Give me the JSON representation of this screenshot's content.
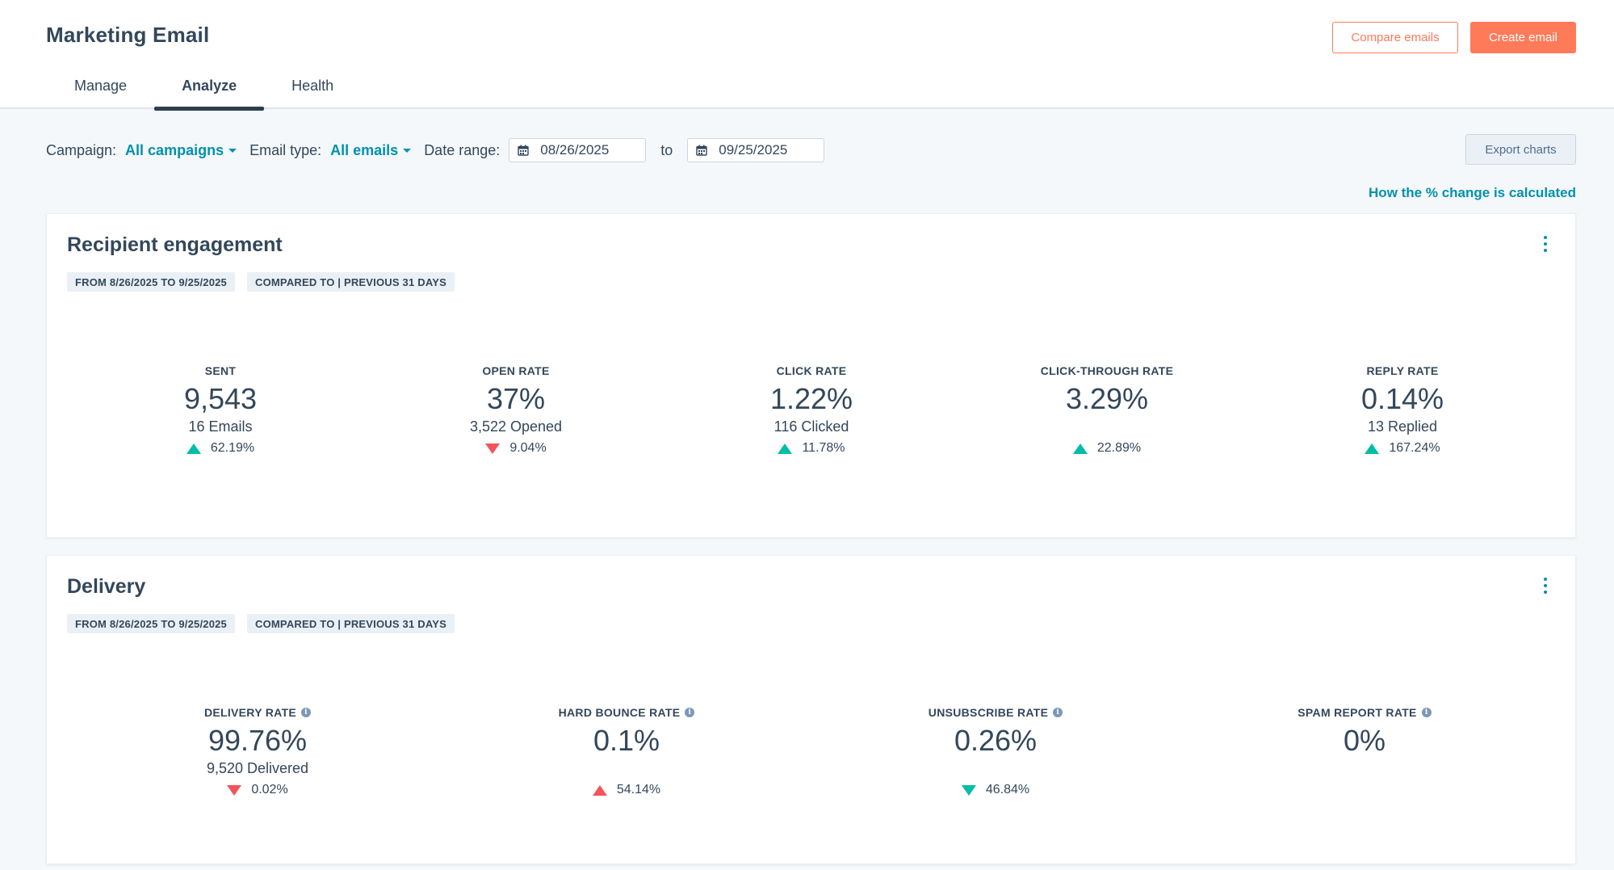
{
  "app": {
    "title": "Marketing Email"
  },
  "header": {
    "compare_label": "Compare emails",
    "create_label": "Create email",
    "tabs": [
      {
        "label": "Manage",
        "active": false
      },
      {
        "label": "Analyze",
        "active": true
      },
      {
        "label": "Health",
        "active": false
      }
    ]
  },
  "filters": {
    "campaign_label": "Campaign:",
    "campaign_value": "All campaigns",
    "email_type_label": "Email type:",
    "email_type_value": "All emails",
    "date_range_label": "Date range:",
    "start_date": "08/26/2025",
    "to_label": "to",
    "end_date": "09/25/2025",
    "export_label": "Export charts",
    "help_link": "How the % change is calculated"
  },
  "colors": {
    "accent_orange": "#ff7a59",
    "link_teal": "#0091ae",
    "positive": "#00bda5",
    "negative": "#f2545b",
    "text": "#33475b"
  },
  "engagement": {
    "title": "Recipient engagement",
    "chip_range": "FROM 8/26/2025 TO 9/25/2025",
    "chip_compare": "COMPARED TO | PREVIOUS 31 DAYS",
    "metrics": [
      {
        "label": "SENT",
        "value": "9,543",
        "sub": "16 Emails",
        "change": "62.19%",
        "direction": "up",
        "sentiment": "positive"
      },
      {
        "label": "OPEN RATE",
        "value": "37%",
        "sub": "3,522 Opened",
        "change": "9.04%",
        "direction": "down",
        "sentiment": "negative"
      },
      {
        "label": "CLICK RATE",
        "value": "1.22%",
        "sub": "116 Clicked",
        "change": "11.78%",
        "direction": "up",
        "sentiment": "positive"
      },
      {
        "label": "CLICK-THROUGH RATE",
        "value": "3.29%",
        "sub": "",
        "change": "22.89%",
        "direction": "up",
        "sentiment": "positive"
      },
      {
        "label": "REPLY RATE",
        "value": "0.14%",
        "sub": "13 Replied",
        "change": "167.24%",
        "direction": "up",
        "sentiment": "positive"
      }
    ]
  },
  "delivery": {
    "title": "Delivery",
    "chip_range": "FROM 8/26/2025 TO 9/25/2025",
    "chip_compare": "COMPARED TO | PREVIOUS 31 DAYS",
    "metrics": [
      {
        "label": "DELIVERY RATE",
        "value": "99.76%",
        "sub": "9,520 Delivered",
        "change": "0.02%",
        "direction": "down",
        "sentiment": "negative"
      },
      {
        "label": "HARD BOUNCE RATE",
        "value": "0.1%",
        "sub": "",
        "change": "54.14%",
        "direction": "up",
        "sentiment": "negative"
      },
      {
        "label": "UNSUBSCRIBE RATE",
        "value": "0.26%",
        "sub": "",
        "change": "46.84%",
        "direction": "down",
        "sentiment": "positive"
      },
      {
        "label": "SPAM REPORT RATE",
        "value": "0%",
        "sub": "",
        "change": "",
        "direction": "",
        "sentiment": ""
      }
    ]
  }
}
